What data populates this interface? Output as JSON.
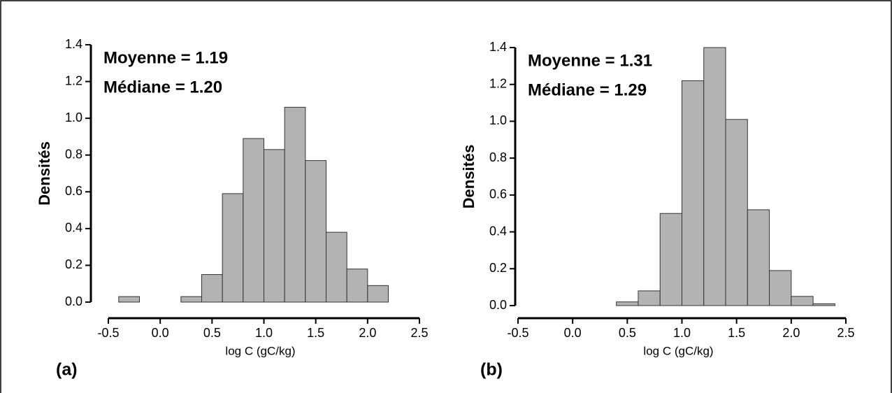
{
  "chart_data": [
    {
      "type": "histogram",
      "panel_label": "(a)",
      "x_label": "log C (gC/kg)",
      "y_label": "Densités",
      "annotations": [
        "Moyenne = 1.19",
        "Médiane = 1.20"
      ],
      "bins": [
        -0.4,
        -0.2,
        0.0,
        0.2,
        0.4,
        0.6,
        0.8,
        1.0,
        1.2,
        1.4,
        1.6,
        1.8,
        2.0,
        2.2
      ],
      "counts": [
        0.03,
        0,
        0,
        0.03,
        0.15,
        0.59,
        0.89,
        0.83,
        1.06,
        0.77,
        0.38,
        0.18,
        0.09
      ],
      "color": "#b3b3b3",
      "xlim": [
        -0.5,
        2.5
      ],
      "xticks": [
        -0.5,
        {
          "value": 0,
          "label": "0.0"
        },
        0.5,
        {
          "value": 1,
          "label": "1.0"
        },
        1.5,
        {
          "value": 2,
          "label": "2.0"
        },
        2.5
      ],
      "ylim": [
        0,
        1.4
      ],
      "yticks": [
        {
          "value": 0,
          "label": "0.0"
        },
        0.2,
        0.4,
        0.6,
        0.8,
        {
          "value": 1,
          "label": "1.0"
        },
        1.2,
        1.4
      ]
    },
    {
      "type": "histogram",
      "panel_label": "(b)",
      "x_label": "log C (gC/kg)",
      "y_label": "Densités",
      "annotations": [
        "Moyenne = 1.31",
        "Médiane = 1.29"
      ],
      "bins": [
        -0.4,
        -0.2,
        0.0,
        0.2,
        0.4,
        0.6,
        0.8,
        1.0,
        1.2,
        1.4,
        1.6,
        1.8,
        2.0,
        2.2,
        2.4
      ],
      "counts": [
        0,
        0,
        0,
        0,
        0.02,
        0.08,
        0.5,
        1.22,
        1.4,
        1.01,
        0.52,
        0.19,
        0.05,
        0.01
      ],
      "color": "#b3b3b3",
      "xlim": [
        -0.5,
        2.5
      ],
      "xticks": [
        -0.5,
        {
          "value": 0,
          "label": "0.0"
        },
        0.5,
        {
          "value": 1,
          "label": "1.0"
        },
        1.5,
        {
          "value": 2,
          "label": "2.0"
        },
        2.5
      ],
      "ylim": [
        0,
        1.4
      ],
      "yticks": [
        {
          "value": 0,
          "label": "0.0"
        },
        0.2,
        0.4,
        0.6,
        0.8,
        {
          "value": 1,
          "label": "1.0"
        },
        1.2,
        1.4
      ]
    }
  ]
}
